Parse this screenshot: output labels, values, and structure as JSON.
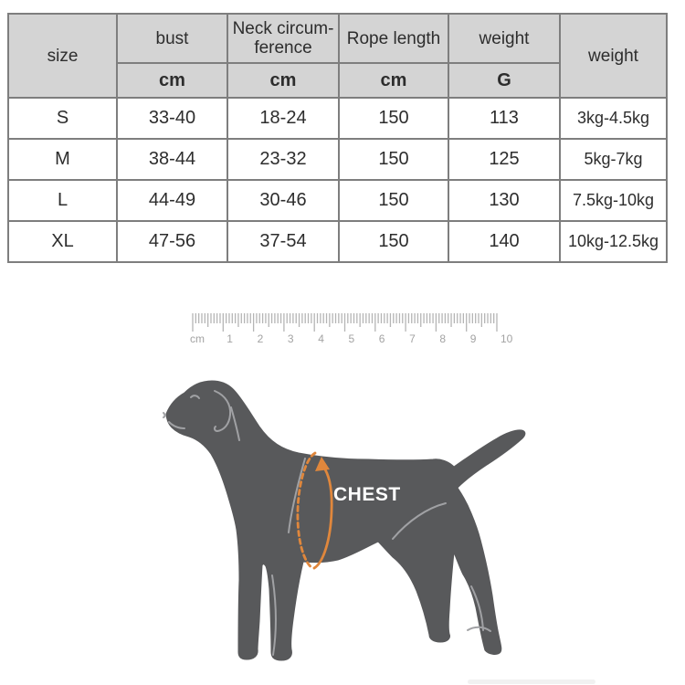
{
  "table": {
    "header": {
      "size": "size",
      "bust": "bust",
      "neck_line1": "Neck circum-",
      "neck_line2": "ference",
      "rope": "Rope length",
      "weight": "weight",
      "weight_range": "weight",
      "unit_cm": "cm",
      "unit_g": "G"
    },
    "rows": [
      {
        "size": "S",
        "bust": "33-40",
        "neck": "18-24",
        "rope": "150",
        "weight_g": "113",
        "weight_kg": "3kg-4.5kg"
      },
      {
        "size": "M",
        "bust": "38-44",
        "neck": "23-32",
        "rope": "150",
        "weight_g": "125",
        "weight_kg": "5kg-7kg"
      },
      {
        "size": "L",
        "bust": "44-49",
        "neck": "30-46",
        "rope": "150",
        "weight_g": "130",
        "weight_kg": "7.5kg-10kg"
      },
      {
        "size": "XL",
        "bust": "47-56",
        "neck": "37-54",
        "rope": "150",
        "weight_g": "140",
        "weight_kg": "10kg-12.5kg"
      }
    ]
  },
  "ruler": {
    "unit_label": "cm",
    "numbers": [
      "1",
      "2",
      "3",
      "4",
      "5",
      "6",
      "7",
      "8",
      "9",
      "10"
    ]
  },
  "diagram": {
    "chest_label": "CHEST"
  },
  "colors": {
    "accent_orange": "#e0873c",
    "dog_gray": "#58595b",
    "header_gray": "#d4d4d4",
    "border_gray": "#7e7e7e"
  }
}
